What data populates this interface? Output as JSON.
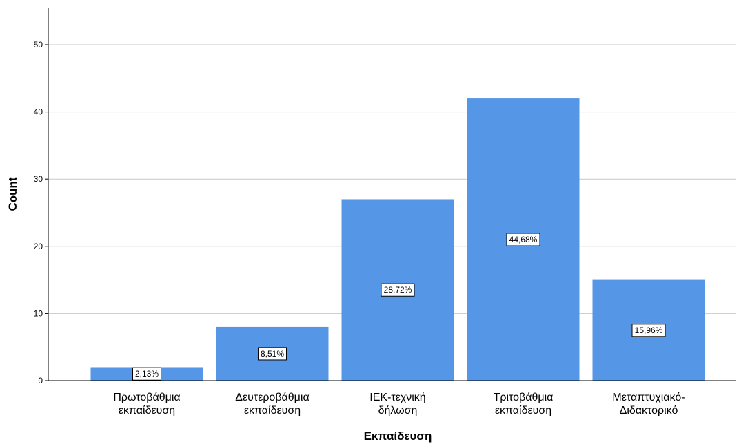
{
  "chart_data": {
    "type": "bar",
    "title": "",
    "xlabel": "Εκπαίδευση",
    "ylabel": "Count",
    "categories": [
      [
        "Πρωτοβάθμια",
        "εκπαίδευση"
      ],
      [
        "Δευτεροβάθμια",
        "εκπαίδευση"
      ],
      [
        "ΙΕΚ-τεχνική",
        "δήλωση"
      ],
      [
        "Τριτοβάθμια",
        "εκπαίδευση"
      ],
      [
        "Μεταπτυχιακό-",
        "Διδακτορικό"
      ]
    ],
    "values": [
      2,
      8,
      27,
      42,
      15
    ],
    "data_labels": [
      "2,13%",
      "8,51%",
      "28,72%",
      "44,68%",
      "15,96%"
    ],
    "ylim": [
      0,
      55
    ],
    "yticks": [
      0,
      10,
      20,
      30,
      40,
      50
    ],
    "grid": true,
    "bar_color": "#5596e6",
    "grid_color": "#c8c8c8"
  }
}
